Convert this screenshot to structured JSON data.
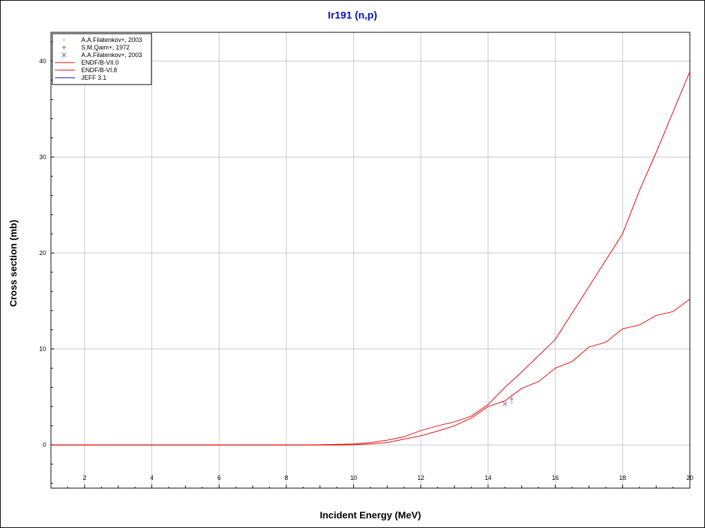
{
  "chart_data": {
    "type": "line",
    "title": "Ir191 (n,p)",
    "xlabel": "Incident Energy (MeV)",
    "ylabel": "Cross section (mb)",
    "xlim": [
      1,
      20
    ],
    "ylim": [
      -4.5,
      43
    ],
    "x_ticks": [
      2,
      4,
      6,
      8,
      10,
      12,
      14,
      16,
      18,
      20
    ],
    "x_tick_labels": [
      "2",
      "4",
      "6",
      "8",
      "10",
      "12",
      "14",
      "16",
      "18",
      "20"
    ],
    "y_ticks": [
      0,
      10,
      20,
      30,
      40
    ],
    "y_tick_labels": [
      "0",
      "10",
      "20",
      "30",
      "40"
    ],
    "grid": true,
    "legend_position": "top-left",
    "series": [
      {
        "name": "A.A.Filatenkov+, 2003",
        "kind": "scatter",
        "marker": "plus",
        "color": "#c8c8c8",
        "x": [
          14.7
        ],
        "y": [
          4.4
        ]
      },
      {
        "name": "S.M.Qaim+, 1972",
        "kind": "scatter",
        "marker": "plus",
        "color": "#808040",
        "x": [
          14.7
        ],
        "y": [
          4.8
        ]
      },
      {
        "name": "A.A.Filatenkov+, 2003",
        "kind": "scatter",
        "marker": "cross",
        "color": "#6060c0",
        "x": [
          14.5
        ],
        "y": [
          4.3
        ]
      },
      {
        "name": "ENDF/B-VII.0",
        "kind": "line",
        "color": "#e00000",
        "x": [
          1,
          8.5,
          9,
          9.5,
          10,
          10.5,
          11,
          11.5,
          12,
          12.5,
          13,
          13.5,
          14,
          14.5,
          15,
          15.5,
          16,
          17,
          18,
          18.5,
          19,
          20
        ],
        "y": [
          0,
          0,
          0.02,
          0.05,
          0.1,
          0.25,
          0.5,
          0.85,
          1.5,
          2.0,
          2.4,
          3.0,
          4.2,
          6.0,
          7.6,
          9.3,
          11.0,
          16.5,
          22.0,
          26.5,
          30.5,
          38.9
        ]
      },
      {
        "name": "ENDF/B-VI.8",
        "kind": "line",
        "color": "#e00000",
        "x": [
          1,
          9.5,
          10,
          10.5,
          11,
          11.5,
          12,
          12.5,
          13,
          13.5,
          14,
          14.5,
          15,
          15.5,
          16,
          16.5,
          17,
          17.5,
          18,
          18.5,
          19,
          19.5,
          20
        ],
        "y": [
          0,
          0,
          0.02,
          0.1,
          0.25,
          0.6,
          0.95,
          1.45,
          2.0,
          2.8,
          4.0,
          4.6,
          5.9,
          6.6,
          8.0,
          8.7,
          10.2,
          10.7,
          12.1,
          12.5,
          13.5,
          13.9,
          15.2
        ]
      },
      {
        "name": "JEFF 3.1",
        "kind": "line",
        "color": "#0000c0",
        "x": [],
        "y": []
      }
    ]
  }
}
